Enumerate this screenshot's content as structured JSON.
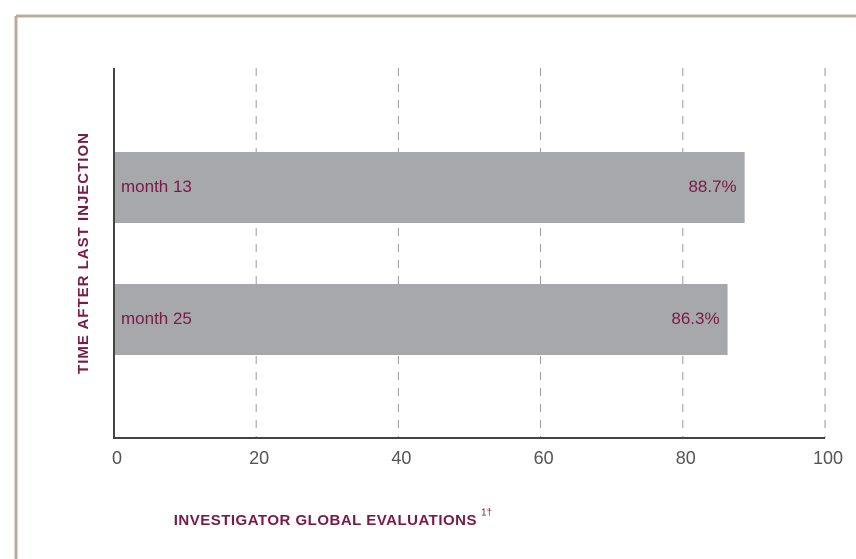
{
  "chart_data": {
    "type": "bar",
    "orientation": "horizontal",
    "ylabel": "TIME AFTER LAST INJECTION",
    "xlabel": "INVESTIGATOR GLOBAL EVALUATIONS",
    "xlabel_note": "1†",
    "categories": [
      "month 13",
      "month 25"
    ],
    "values": [
      88.7,
      86.3
    ],
    "value_labels": [
      "88.7%",
      "86.3%"
    ],
    "color": "#a7a8ab",
    "xlim": [
      0,
      100
    ],
    "xticks": [
      0,
      20,
      40,
      60,
      80,
      100
    ],
    "grid": true
  }
}
